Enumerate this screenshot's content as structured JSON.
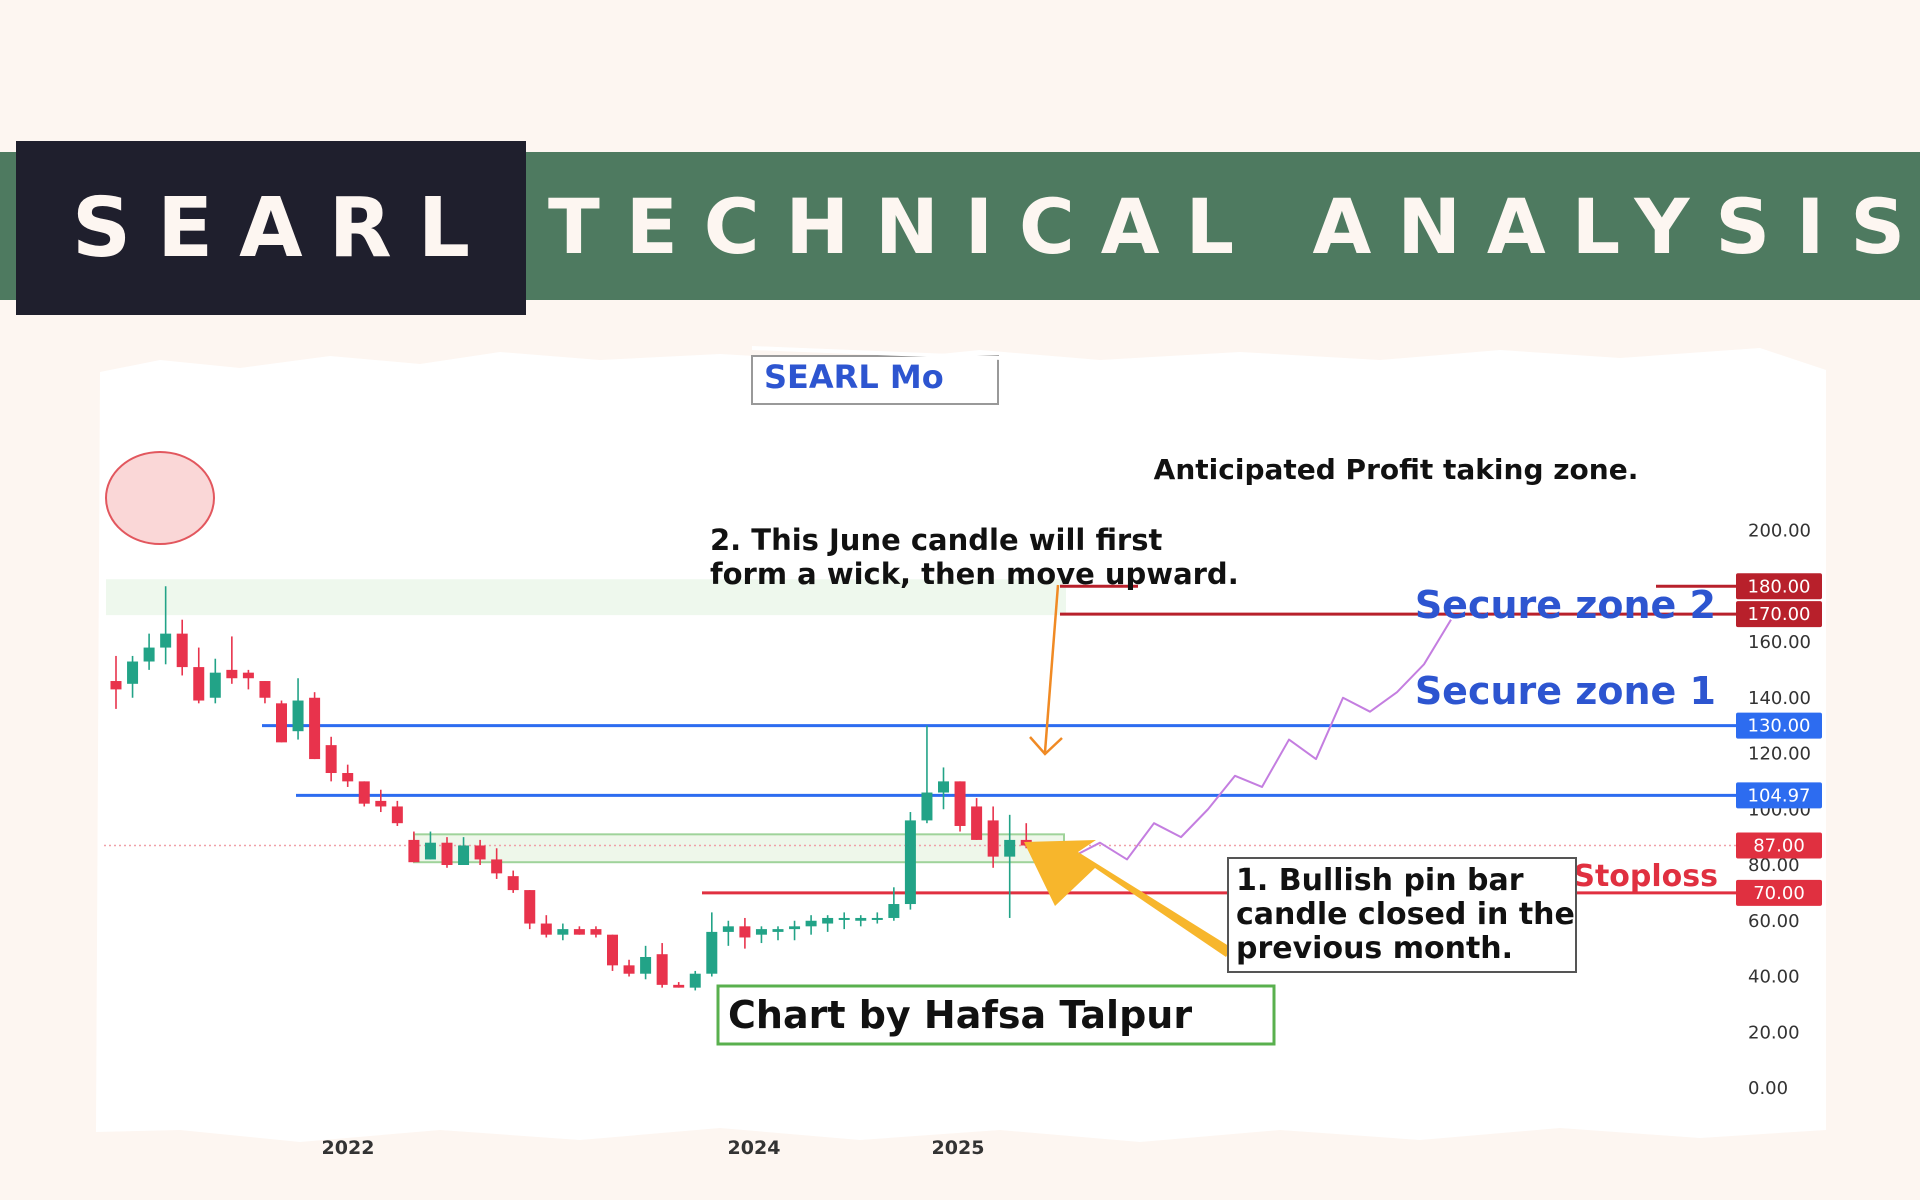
{
  "header": {
    "ticker": "SEARL",
    "title": "TECHNICAL ANALYSIS",
    "band_color": "#4e7a60",
    "ticker_bg": "#1f1f2d",
    "text_color": "#fdf6f1"
  },
  "chart_data": {
    "type": "candlestick",
    "title_fragment": "SEARL Mo",
    "timeframe": "monthly",
    "x_ticks": [
      "2022",
      "2024",
      "2025"
    ],
    "y_ticks": [
      "200.00",
      "180.00",
      "170.00",
      "160.00",
      "140.00",
      "130.00",
      "120.00",
      "104.97",
      "100.00",
      "87.00",
      "80.00",
      "70.00",
      "60.00",
      "40.00",
      "20.00",
      "0.00"
    ],
    "ylim": [
      0,
      200
    ],
    "colors": {
      "up": "#22a387",
      "down": "#e8334c",
      "resistance": "#2d6cf0",
      "stoploss": "#e03040",
      "profit": "#b8202b",
      "projection": "#c47ee0",
      "arrow_orange": "#f08a24",
      "arrow_yellow": "#f7b62c"
    },
    "candles": [
      {
        "o": 146,
        "h": 155,
        "l": 136,
        "c": 143
      },
      {
        "o": 145,
        "h": 155,
        "l": 140,
        "c": 153
      },
      {
        "o": 153,
        "h": 163,
        "l": 150,
        "c": 158
      },
      {
        "o": 158,
        "h": 180,
        "l": 152,
        "c": 163
      },
      {
        "o": 163,
        "h": 168,
        "l": 148,
        "c": 151
      },
      {
        "o": 151,
        "h": 158,
        "l": 138,
        "c": 139
      },
      {
        "o": 140,
        "h": 154,
        "l": 138,
        "c": 149
      },
      {
        "o": 150,
        "h": 162,
        "l": 145,
        "c": 147
      },
      {
        "o": 149,
        "h": 150,
        "l": 143,
        "c": 147
      },
      {
        "o": 146,
        "h": 146,
        "l": 138,
        "c": 140
      },
      {
        "o": 138,
        "h": 139,
        "l": 124,
        "c": 124
      },
      {
        "o": 128,
        "h": 147,
        "l": 125,
        "c": 139
      },
      {
        "o": 140,
        "h": 142,
        "l": 118,
        "c": 118
      },
      {
        "o": 123,
        "h": 126,
        "l": 110,
        "c": 113
      },
      {
        "o": 113,
        "h": 116,
        "l": 108,
        "c": 110
      },
      {
        "o": 110,
        "h": 110,
        "l": 101,
        "c": 102
      },
      {
        "o": 103,
        "h": 107,
        "l": 99,
        "c": 101
      },
      {
        "o": 101,
        "h": 103,
        "l": 94,
        "c": 95
      },
      {
        "o": 89,
        "h": 92,
        "l": 81,
        "c": 81
      },
      {
        "o": 82,
        "h": 92,
        "l": 82,
        "c": 88
      },
      {
        "o": 88,
        "h": 90,
        "l": 79,
        "c": 80
      },
      {
        "o": 80,
        "h": 90,
        "l": 80,
        "c": 87
      },
      {
        "o": 87,
        "h": 89,
        "l": 80,
        "c": 82
      },
      {
        "o": 82,
        "h": 86,
        "l": 75,
        "c": 77
      },
      {
        "o": 76,
        "h": 78,
        "l": 70,
        "c": 71
      },
      {
        "o": 71,
        "h": 71,
        "l": 57,
        "c": 59
      },
      {
        "o": 59,
        "h": 62,
        "l": 54,
        "c": 55
      },
      {
        "o": 55,
        "h": 59,
        "l": 53,
        "c": 57
      },
      {
        "o": 57,
        "h": 58,
        "l": 55,
        "c": 55
      },
      {
        "o": 57,
        "h": 58,
        "l": 54,
        "c": 55
      },
      {
        "o": 55,
        "h": 55,
        "l": 42,
        "c": 44
      },
      {
        "o": 44,
        "h": 46,
        "l": 40,
        "c": 41
      },
      {
        "o": 41,
        "h": 51,
        "l": 39,
        "c": 47
      },
      {
        "o": 48,
        "h": 52,
        "l": 36,
        "c": 37
      },
      {
        "o": 37,
        "h": 38,
        "l": 36,
        "c": 36
      },
      {
        "o": 36,
        "h": 42,
        "l": 35,
        "c": 41
      },
      {
        "o": 41,
        "h": 63,
        "l": 40,
        "c": 56
      },
      {
        "o": 56,
        "h": 60,
        "l": 51,
        "c": 58
      },
      {
        "o": 58,
        "h": 61,
        "l": 50,
        "c": 54
      },
      {
        "o": 55,
        "h": 58,
        "l": 52,
        "c": 57
      },
      {
        "o": 56,
        "h": 58,
        "l": 53,
        "c": 57
      },
      {
        "o": 57,
        "h": 60,
        "l": 53,
        "c": 58
      },
      {
        "o": 58,
        "h": 62,
        "l": 55,
        "c": 60
      },
      {
        "o": 59,
        "h": 62,
        "l": 56,
        "c": 61
      },
      {
        "o": 61,
        "h": 63,
        "l": 57,
        "c": 61
      },
      {
        "o": 60,
        "h": 62,
        "l": 58,
        "c": 61
      },
      {
        "o": 61,
        "h": 63,
        "l": 59,
        "c": 61
      },
      {
        "o": 61,
        "h": 72,
        "l": 60,
        "c": 66
      },
      {
        "o": 66,
        "h": 99,
        "l": 64,
        "c": 96
      },
      {
        "o": 96,
        "h": 130,
        "l": 95,
        "c": 106
      },
      {
        "o": 106,
        "h": 115,
        "l": 100,
        "c": 110
      },
      {
        "o": 110,
        "h": 110,
        "l": 92,
        "c": 94
      },
      {
        "o": 101,
        "h": 104,
        "l": 89,
        "c": 89
      },
      {
        "o": 96,
        "h": 101,
        "l": 79,
        "c": 83
      },
      {
        "o": 83,
        "h": 98,
        "l": 61,
        "c": 89
      },
      {
        "o": 89,
        "h": 95,
        "l": 86,
        "c": 87
      }
    ],
    "horizontal_levels": [
      {
        "value": 180.0,
        "label": "180.00",
        "kind": "profit"
      },
      {
        "value": 170.0,
        "label": "170.00",
        "kind": "profit"
      },
      {
        "value": 130.0,
        "label": "130.00",
        "kind": "resistance"
      },
      {
        "value": 104.97,
        "label": "104.97",
        "kind": "resistance"
      },
      {
        "value": 87.0,
        "label": "87.00",
        "kind": "current"
      },
      {
        "value": 70.0,
        "label": "70.00",
        "kind": "stoploss"
      }
    ],
    "zones": [
      {
        "from": 180,
        "to": 170,
        "label": "Anticipated Profit taking zone."
      },
      {
        "from": 91,
        "to": 81
      }
    ],
    "zone_labels": {
      "secure2": "Secure zone 2",
      "secure1": "Secure zone 1",
      "stoploss": "Stoploss"
    },
    "projection_path": [
      [
        87,
        0
      ],
      [
        83,
        1
      ],
      [
        88,
        2
      ],
      [
        82,
        3
      ],
      [
        95,
        4
      ],
      [
        90,
        5
      ],
      [
        100,
        6
      ],
      [
        112,
        7
      ],
      [
        108,
        8
      ],
      [
        125,
        9
      ],
      [
        118,
        10
      ],
      [
        140,
        11
      ],
      [
        135,
        12
      ],
      [
        142,
        13
      ],
      [
        152,
        14
      ],
      [
        168,
        15
      ]
    ],
    "annotations": {
      "note1": [
        "1. Bullish pin bar",
        "candle closed in the",
        "previous month."
      ],
      "note2": [
        "2. This June candle will first",
        "form a wick, then move upward."
      ],
      "credit": "Chart by Hafsa Talpur"
    }
  }
}
